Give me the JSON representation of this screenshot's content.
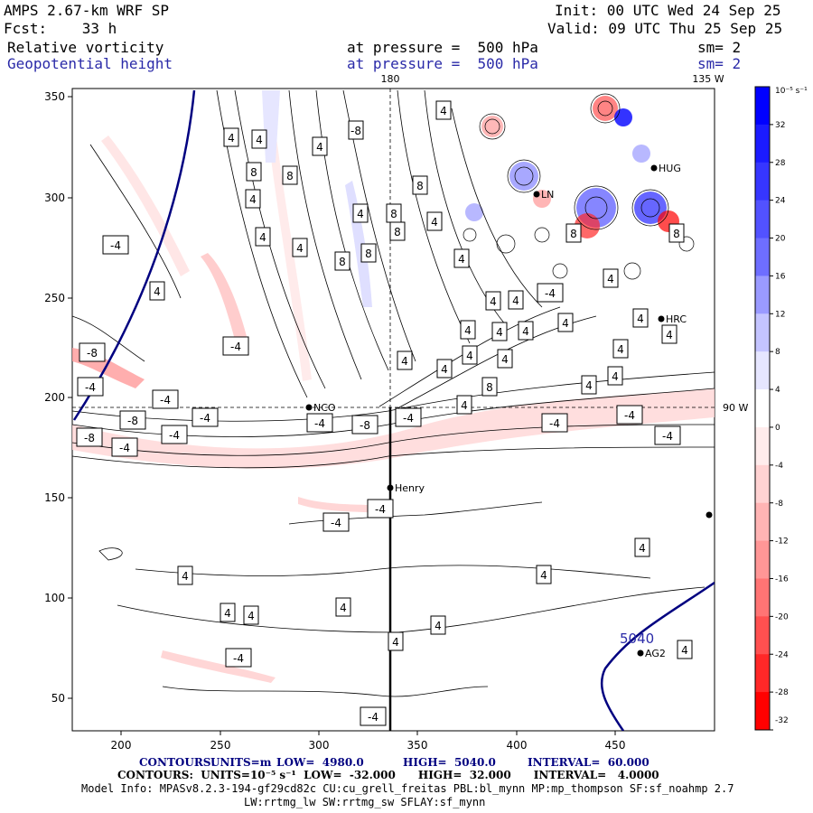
{
  "header": {
    "model": "AMPS 2.67-km WRF SP",
    "init": "Init: 00 UTC Wed 24 Sep 25",
    "fcst": "Fcst:    33 h",
    "valid": "Valid: 09 UTC Thu 25 Sep 25",
    "field1": "Relative vorticity",
    "field1_level": "at pressure =  500 hPa",
    "field1_sm": "sm= 2",
    "field2": "Geopotential height",
    "field2_level": "at pressure =  500 hPa",
    "field2_sm": "sm= 2"
  },
  "map": {
    "meridian_top": "180",
    "meridian_right_top": "135 W",
    "meridian_right": "90 W",
    "x_ticks": [
      "200",
      "250",
      "300",
      "350",
      "400",
      "450"
    ],
    "y_ticks": [
      "350",
      "300",
      "250",
      "200",
      "150",
      "100",
      "50"
    ],
    "stations": [
      "NCO",
      "Henry",
      "HRC",
      "HUG",
      "LN",
      "AG2"
    ],
    "height_label": "5040",
    "vort_labels": [
      "4",
      "-4",
      "8",
      "-8"
    ]
  },
  "colorbar": {
    "units": "10⁻⁵ s⁻¹",
    "ticks": [
      "32",
      "28",
      "24",
      "20",
      "16",
      "12",
      "8",
      "4",
      "0",
      "-4",
      "-8",
      "-12",
      "-16",
      "-20",
      "-24",
      "-28",
      "-32"
    ],
    "colors": [
      "#0000ff",
      "#1b1bff",
      "#3636ff",
      "#5252ff",
      "#6e6eff",
      "#9a9aff",
      "#c4c4ff",
      "#e6e6ff",
      "#ffffff",
      "#ffecec",
      "#ffd2d2",
      "#ffb4b4",
      "#ff9696",
      "#ff7474",
      "#ff5050",
      "#ff2828",
      "#ff0000"
    ]
  },
  "footer": {
    "line1_label": "CONTOURS:",
    "line1_units": "UNITS=m",
    "line1_low": "LOW=  4980.0",
    "line1_high": "HIGH=  5040.0",
    "line1_int": "INTERVAL=  60.000",
    "line2": "CONTOURS:  UNITS=10⁻⁵ s⁻¹  LOW=  -32.000      HIGH=  32.000      INTERVAL=   4.0000",
    "line3": "Model Info: MPASv8.2.3-194-gf29cd82c CU:cu_grell_freitas PBL:bl_mynn MP:mp_thompson SF:sf_noahmp 2.7",
    "line4": "LW:rrtmg_lw SW:rrtmg_sw SFLAY:sf_mynn"
  }
}
